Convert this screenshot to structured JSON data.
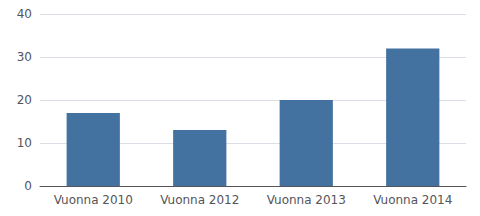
{
  "chart_data": {
    "type": "bar",
    "categories": [
      "Vuonna 2010",
      "Vuonna 2012",
      "Vuonna 2013",
      "Vuonna 2014"
    ],
    "values": [
      17,
      13,
      20,
      32
    ],
    "color": "#4472a0",
    "ylim": [
      0,
      40
    ],
    "yticks": [
      0,
      10,
      20,
      30,
      40
    ],
    "grid": true
  }
}
